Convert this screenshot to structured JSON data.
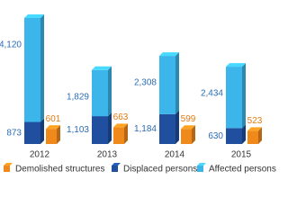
{
  "chart_data": {
    "type": "bar",
    "stacked": true,
    "categories": [
      "2012",
      "2013",
      "2014",
      "2015"
    ],
    "series": [
      {
        "name": "Demolished structures",
        "color": "#f0891c",
        "values": [
          601,
          663,
          599,
          523
        ]
      },
      {
        "name": "Displaced persons",
        "color": "#1f4f9e",
        "values": [
          873,
          1103,
          1184,
          630
        ],
        "value_labels": [
          "873",
          "1,103",
          "1,184",
          "630"
        ]
      },
      {
        "name": "Affected persons",
        "color": "#3bb5ea",
        "values": [
          4120,
          1829,
          2308,
          2434
        ],
        "value_labels": [
          "4,120",
          "1,829",
          "2,308",
          "2,434"
        ]
      }
    ]
  }
}
